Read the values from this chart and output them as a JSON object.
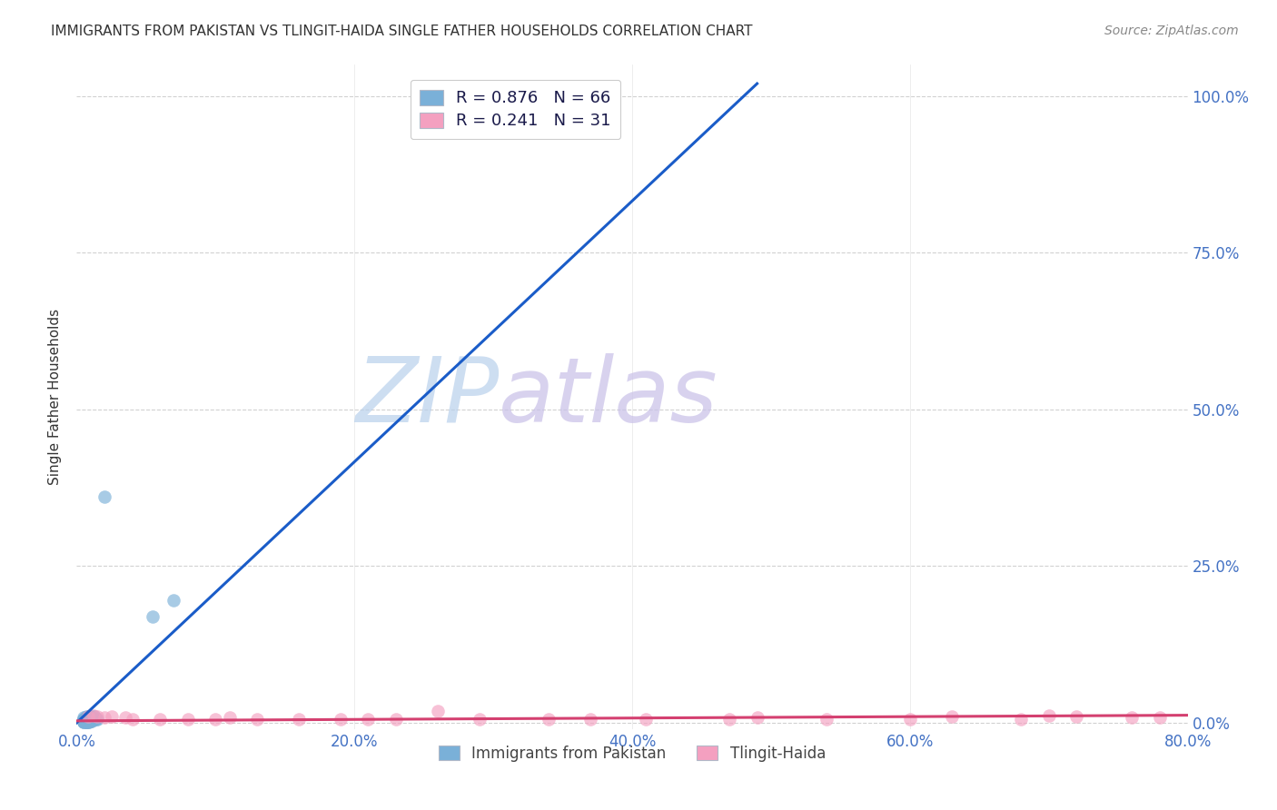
{
  "title": "IMMIGRANTS FROM PAKISTAN VS TLINGIT-HAIDA SINGLE FATHER HOUSEHOLDS CORRELATION CHART",
  "source": "Source: ZipAtlas.com",
  "ylabel_label": "Single Father Households",
  "xlim": [
    0.0,
    0.8
  ],
  "ylim": [
    -0.01,
    1.05
  ],
  "watermark_zip": "ZIP",
  "watermark_atlas": "atlas",
  "legend_line1": "R = 0.876   N = 66",
  "legend_line2": "R = 0.241   N = 31",
  "legend_labels_bottom": [
    "Immigrants from Pakistan",
    "Tlingit-Haida"
  ],
  "blue_scatter": [
    [
      0.005,
      0.005
    ],
    [
      0.007,
      0.003
    ],
    [
      0.008,
      0.005
    ],
    [
      0.005,
      0.008
    ],
    [
      0.007,
      0.01
    ],
    [
      0.008,
      0.008
    ],
    [
      0.009,
      0.005
    ],
    [
      0.01,
      0.005
    ],
    [
      0.008,
      0.003
    ],
    [
      0.007,
      0.005
    ],
    [
      0.005,
      0.003
    ],
    [
      0.009,
      0.003
    ],
    [
      0.008,
      0.007
    ],
    [
      0.01,
      0.01
    ],
    [
      0.011,
      0.007
    ],
    [
      0.012,
      0.01
    ],
    [
      0.013,
      0.005
    ],
    [
      0.009,
      0.005
    ],
    [
      0.01,
      0.003
    ],
    [
      0.008,
      0.004
    ],
    [
      0.007,
      0.003
    ],
    [
      0.005,
      0.004
    ],
    [
      0.011,
      0.005
    ],
    [
      0.009,
      0.008
    ],
    [
      0.005,
      0.005
    ],
    [
      0.008,
      0.002
    ],
    [
      0.007,
      0.006
    ],
    [
      0.01,
      0.006
    ],
    [
      0.007,
      0.002
    ],
    [
      0.008,
      0.01
    ],
    [
      0.009,
      0.01
    ],
    [
      0.005,
      0.006
    ],
    [
      0.008,
      0.008
    ],
    [
      0.006,
      0.005
    ],
    [
      0.011,
      0.003
    ],
    [
      0.012,
      0.005
    ],
    [
      0.013,
      0.01
    ],
    [
      0.015,
      0.005
    ],
    [
      0.005,
      0.001
    ],
    [
      0.007,
      0.008
    ],
    [
      0.009,
      0.003
    ],
    [
      0.008,
      0.003
    ],
    [
      0.007,
      0.002
    ],
    [
      0.014,
      0.005
    ],
    [
      0.01,
      0.008
    ],
    [
      0.011,
      0.005
    ],
    [
      0.008,
      0.005
    ],
    [
      0.005,
      0.002
    ],
    [
      0.009,
      0.002
    ],
    [
      0.007,
      0.004
    ],
    [
      0.01,
      0.004
    ],
    [
      0.008,
      0.003
    ],
    [
      0.005,
      0.003
    ],
    [
      0.007,
      0.001
    ],
    [
      0.008,
      0.002
    ],
    [
      0.005,
      0.002
    ],
    [
      0.007,
      0.003
    ],
    [
      0.009,
      0.004
    ],
    [
      0.01,
      0.005
    ],
    [
      0.008,
      0.006
    ],
    [
      0.009,
      0.007
    ],
    [
      0.007,
      0.002
    ],
    [
      0.005,
      0.003
    ],
    [
      0.02,
      0.36
    ],
    [
      0.055,
      0.17
    ],
    [
      0.07,
      0.195
    ]
  ],
  "pink_scatter": [
    [
      0.008,
      0.01
    ],
    [
      0.012,
      0.012
    ],
    [
      0.015,
      0.01
    ],
    [
      0.02,
      0.008
    ],
    [
      0.025,
      0.01
    ],
    [
      0.035,
      0.008
    ],
    [
      0.04,
      0.005
    ],
    [
      0.06,
      0.005
    ],
    [
      0.08,
      0.005
    ],
    [
      0.1,
      0.005
    ],
    [
      0.11,
      0.008
    ],
    [
      0.13,
      0.005
    ],
    [
      0.16,
      0.005
    ],
    [
      0.19,
      0.005
    ],
    [
      0.21,
      0.005
    ],
    [
      0.23,
      0.005
    ],
    [
      0.26,
      0.018
    ],
    [
      0.29,
      0.005
    ],
    [
      0.34,
      0.005
    ],
    [
      0.37,
      0.005
    ],
    [
      0.41,
      0.005
    ],
    [
      0.47,
      0.005
    ],
    [
      0.49,
      0.008
    ],
    [
      0.54,
      0.005
    ],
    [
      0.6,
      0.005
    ],
    [
      0.63,
      0.01
    ],
    [
      0.68,
      0.005
    ],
    [
      0.7,
      0.012
    ],
    [
      0.72,
      0.01
    ],
    [
      0.76,
      0.008
    ],
    [
      0.78,
      0.008
    ]
  ],
  "blue_line_x": [
    0.0,
    0.49
  ],
  "blue_line_y": [
    0.0,
    1.02
  ],
  "pink_line_x": [
    0.0,
    0.8
  ],
  "pink_line_y": [
    0.003,
    0.012
  ],
  "blue_line_color": "#1a5cc8",
  "pink_line_color": "#d44070",
  "blue_scatter_color": "#7ab0d8",
  "pink_scatter_color": "#f4a0c0",
  "background_color": "#ffffff",
  "grid_color": "#cccccc",
  "title_color": "#333333",
  "tick_color": "#4472c4",
  "ylabel_color": "#333333",
  "source_color": "#888888",
  "legend_text_color": "#1a1a4a",
  "legend_value_color": "#2255cc"
}
